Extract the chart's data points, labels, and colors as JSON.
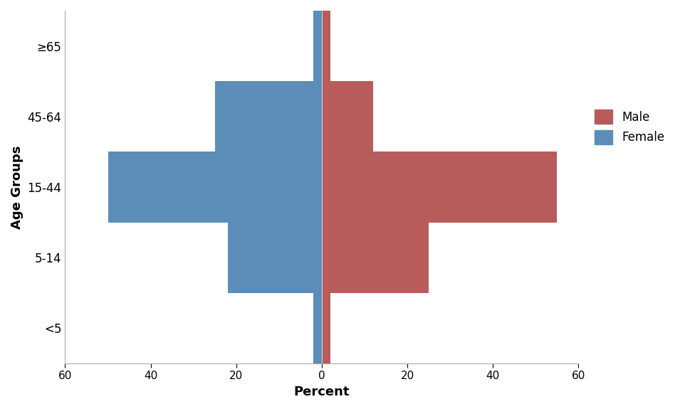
{
  "age_groups": [
    "<5",
    "5-14",
    "15-44",
    "45-64",
    "≥65"
  ],
  "female_values": [
    -2,
    -22,
    -50,
    -25,
    -2
  ],
  "male_values": [
    2,
    25,
    55,
    12,
    2
  ],
  "female_color": "#5B8DB8",
  "male_color": "#B85B5B",
  "xlabel": "Percent",
  "ylabel": "Age Groups",
  "xlim": [
    -60,
    60
  ],
  "xticks": [
    -60,
    -40,
    -20,
    0,
    20,
    40,
    60
  ],
  "xtick_labels": [
    "60",
    "40",
    "20",
    "0",
    "20",
    "40",
    "60"
  ],
  "legend_male": "Male",
  "legend_female": "Female",
  "bar_height": 1.0,
  "background_color": "#ffffff",
  "ylim": [
    -0.5,
    4.5
  ]
}
